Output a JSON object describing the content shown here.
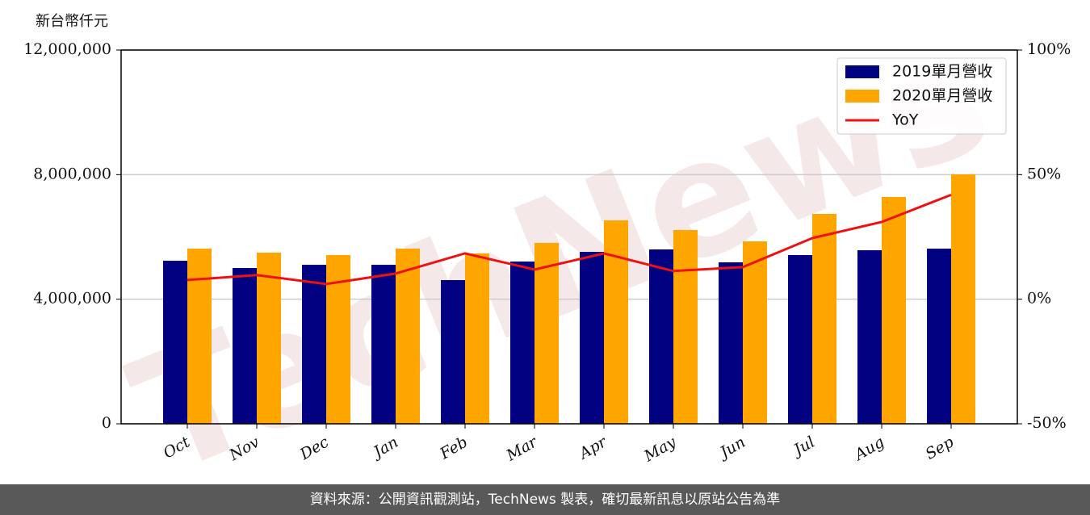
{
  "chart_data": {
    "type": "bar_line",
    "y_axis_label": "新台幣仟元",
    "watermark": "TechNews",
    "categories": [
      "Oct",
      "Nov",
      "Dec",
      "Jan",
      "Feb",
      "Mar",
      "Apr",
      "May",
      "Jun",
      "Jul",
      "Aug",
      "Sep"
    ],
    "series": [
      {
        "name": "2019單月營收",
        "type": "bar",
        "color": "#000080",
        "values": [
          5235000,
          5002000,
          5106000,
          5106000,
          4613000,
          5210000,
          5520000,
          5598000,
          5184000,
          5417000,
          5572000,
          5624000
        ]
      },
      {
        "name": "2020單月營收",
        "type": "bar",
        "color": "#ffa500",
        "values": [
          5624000,
          5495000,
          5417000,
          5624000,
          5469000,
          5806000,
          6531000,
          6220000,
          5857000,
          6739000,
          7283000,
          8009000
        ]
      },
      {
        "name": "YoY",
        "type": "line",
        "axis": "y2",
        "color": "#ee1111",
        "values": [
          7.7,
          9.7,
          6.1,
          10.3,
          18.4,
          11.9,
          18.4,
          11.3,
          12.9,
          24.5,
          31.0,
          41.9
        ]
      }
    ],
    "ylim": [
      0,
      12000000
    ],
    "yticks": [
      {
        "value": 0,
        "label": "0"
      },
      {
        "value": 4000000,
        "label": "4,000,000"
      },
      {
        "value": 8000000,
        "label": "8,000,000"
      },
      {
        "value": 12000000,
        "label": "12,000,000"
      }
    ],
    "y2lim": [
      -50,
      100
    ],
    "y2ticks": [
      {
        "value": -50,
        "label": "-50%"
      },
      {
        "value": 0,
        "label": "0%"
      },
      {
        "value": 50,
        "label": "50%"
      },
      {
        "value": 100,
        "label": "100%"
      }
    ],
    "grid": true,
    "legend": "upper right",
    "footer": "資料來源：公開資訊觀測站，TechNews 製表，確切最新訊息以原站公告為準"
  }
}
